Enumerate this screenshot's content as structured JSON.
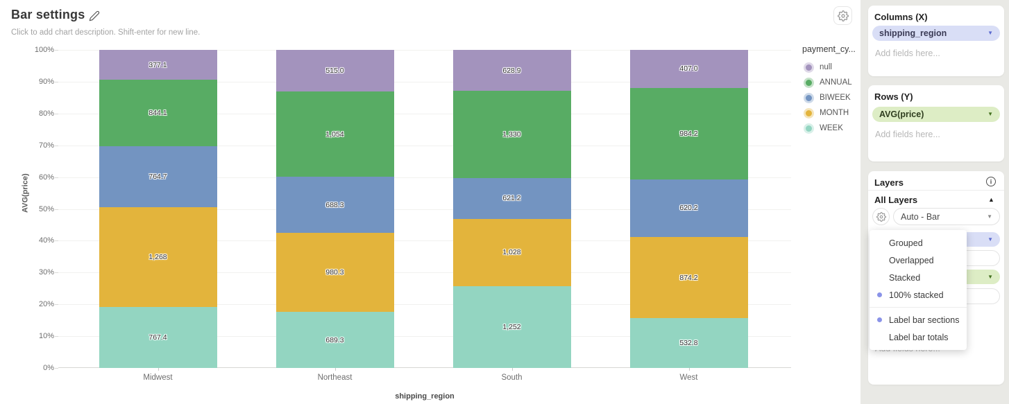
{
  "chart_card": {
    "title": "Bar settings",
    "description_placeholder": "Click to add chart description. Shift-enter for new line."
  },
  "chart_data": {
    "type": "bar",
    "stacking": "100%",
    "title": "Bar settings",
    "xlabel": "shipping_region",
    "ylabel": "AVG(price)",
    "categories": [
      "Midwest",
      "Northeast",
      "South",
      "West"
    ],
    "series": [
      {
        "name": "WEEK",
        "color": "#93d5c1",
        "values": [
          767.4,
          689.3,
          1252,
          532.8
        ],
        "labels": [
          "767.4",
          "689.3",
          "1,252",
          "532.8"
        ]
      },
      {
        "name": "MONTH",
        "color": "#e3b43c",
        "values": [
          1268,
          980.3,
          1028,
          874.2
        ],
        "labels": [
          "1,268",
          "980.3",
          "1,028",
          "874.2"
        ]
      },
      {
        "name": "BIWEEK",
        "color": "#7394c1",
        "values": [
          764.7,
          688.3,
          621.2,
          620.2
        ],
        "labels": [
          "764.7",
          "688.3",
          "621.2",
          "620.2"
        ]
      },
      {
        "name": "ANNUAL",
        "color": "#58ac64",
        "values": [
          844.1,
          1054,
          1330,
          984.2
        ],
        "labels": [
          "844.1",
          "1,054",
          "1,330",
          "984.2"
        ]
      },
      {
        "name": "null",
        "color": "#a393bd",
        "values": [
          377.1,
          515.0,
          628.9,
          407.0
        ],
        "labels": [
          "377.1",
          "515.0",
          "628.9",
          "407.0"
        ]
      }
    ],
    "y_ticks": [
      "0%",
      "10%",
      "20%",
      "30%",
      "40%",
      "50%",
      "60%",
      "70%",
      "80%",
      "90%",
      "100%"
    ],
    "ylim": [
      "0%",
      "100%"
    ],
    "grid": true,
    "legend": {
      "title": "payment_cy...",
      "position": "right",
      "order": [
        "null",
        "ANNUAL",
        "BIWEEK",
        "MONTH",
        "WEEK"
      ]
    }
  },
  "sidebar": {
    "columns_section": {
      "title": "Columns (X)",
      "field": "shipping_region",
      "placeholder": "Add fields here...",
      "pill_bg": "#d9def6",
      "caret_color": "#5b6acf",
      "text_color": "#3a3a55"
    },
    "rows_section": {
      "title": "Rows (Y)",
      "field": "AVG(price)",
      "placeholder": "Add fields here...",
      "pill_bg": "#ddedc5",
      "caret_color": "#43701f",
      "text_color": "#2f3d1f"
    },
    "layers_section": {
      "title": "Layers",
      "subsection": "All Layers",
      "layer_type_value": "Auto - Bar",
      "placeholder": "Add fields here..."
    }
  },
  "dropdown_menu": {
    "dot_color": "#8a93e8",
    "sections": [
      [
        {
          "label": "Grouped",
          "selected": false
        },
        {
          "label": "Overlapped",
          "selected": false
        },
        {
          "label": "Stacked",
          "selected": false
        },
        {
          "label": "100% stacked",
          "selected": true
        }
      ],
      [
        {
          "label": "Label bar sections",
          "selected": true
        },
        {
          "label": "Label bar totals",
          "selected": false
        }
      ]
    ]
  }
}
